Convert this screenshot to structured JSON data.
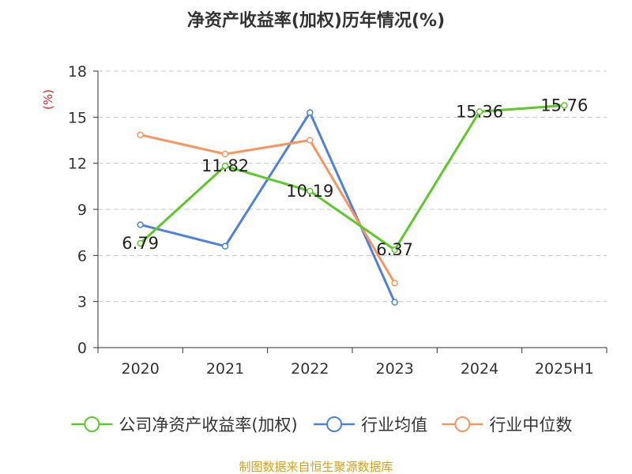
{
  "chart_data": {
    "type": "line",
    "title": "净资产收益率(加权)历年情况(%)",
    "ylabel": "(%)",
    "xlabel": "",
    "categories": [
      "2020",
      "2021",
      "2022",
      "2023",
      "2024",
      "2025H1"
    ],
    "ylim": [
      0,
      18
    ],
    "yticks": [
      "0",
      "3",
      "6",
      "9",
      "12",
      "15",
      "18"
    ],
    "grid": true,
    "legend_position": "bottom",
    "series": [
      {
        "name": "公司净资产收益率(加权)",
        "color": "#5ec72a",
        "values": [
          6.79,
          11.82,
          10.19,
          6.37,
          15.36,
          15.76
        ],
        "labels": [
          "6.79",
          "11.82",
          "10.19",
          "6.37",
          "15.36",
          "15.76"
        ]
      },
      {
        "name": "行业均值",
        "color": "#4f81d8",
        "values": [
          8.0,
          6.6,
          15.3,
          2.95,
          null,
          null
        ]
      },
      {
        "name": "行业中位数",
        "color": "#f79560",
        "values": [
          13.85,
          12.6,
          13.5,
          4.2,
          null,
          null
        ]
      }
    ],
    "source": "制图数据来自恒生聚源数据库"
  }
}
